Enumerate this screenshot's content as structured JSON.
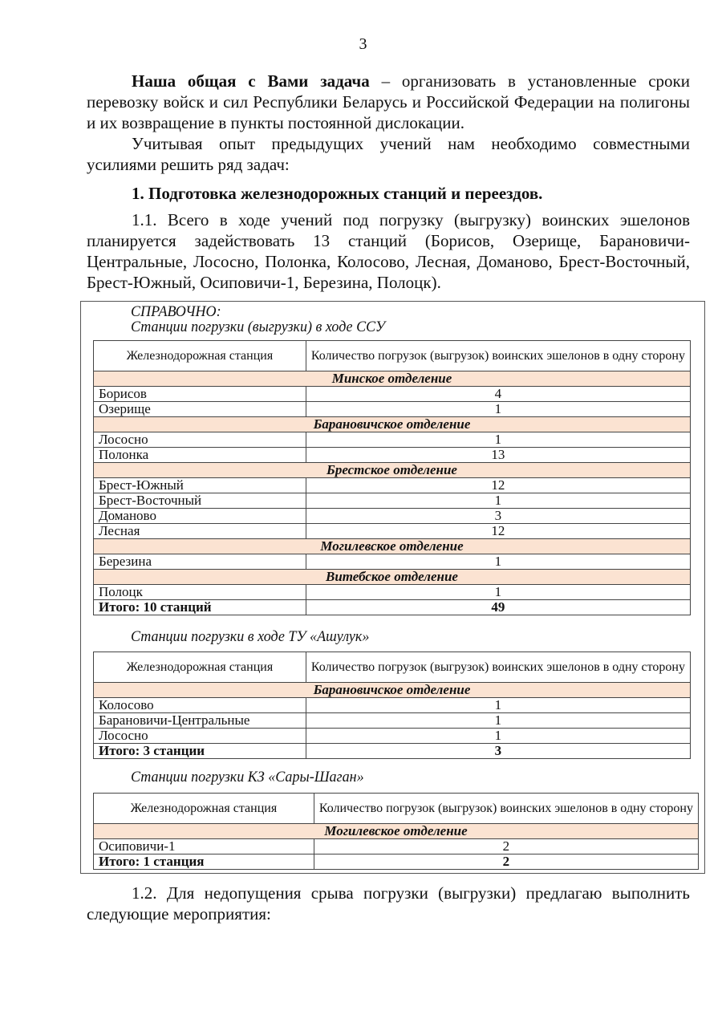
{
  "page_number": "3",
  "intro": {
    "bold_lead": "Наша общая с Вами задача",
    "rest": " – организовать в установленные сроки перевозку войск и сил Республики Беларусь и Российской Федерации на полигоны и их возвращение в пункты постоянной дислокации."
  },
  "para2": "Учитывая опыт предыдущих учений нам необходимо совместными усилиями решить ряд задач:",
  "heading1": "1. Подготовка железнодорожных станций и переездов.",
  "para_1_1": "1.1. Всего в ходе учений под погрузку (выгрузку) воинских эшелонов планируется задействовать 13 станций (Борисов, Озерище, Барановичи-Центральные, Лососно, Полонка, Колосово, Лесная, Доманово, Брест-Восточный, Брест-Южный, Осиповичи-1, Березина, Полоцк).",
  "reference": {
    "label": "СПРАВОЧНО:",
    "col1": "Железнодорожная станция",
    "col2": "Количество погрузок (выгрузок) воинских эшелонов в одну сторону",
    "section_bg": "#fbe3d2",
    "tables": [
      {
        "caption": "Станции погрузки (выгрузки) в ходе ССУ",
        "rows": [
          {
            "section": "Минское отделение"
          },
          {
            "station": "Борисов",
            "count": "4"
          },
          {
            "station": "Озерище",
            "count": "1"
          },
          {
            "section": "Барановичское отделение"
          },
          {
            "station": "Лососно",
            "count": "1"
          },
          {
            "station": "Полонка",
            "count": "13"
          },
          {
            "section": "Брестское отделение"
          },
          {
            "station": "Брест-Южный",
            "count": "12"
          },
          {
            "station": "Брест-Восточный",
            "count": "1"
          },
          {
            "station": "Доманово",
            "count": "3"
          },
          {
            "station": "Лесная",
            "count": "12"
          },
          {
            "section": "Могилевское отделение"
          },
          {
            "station": "Березина",
            "count": "1"
          },
          {
            "section": "Витебское отделение"
          },
          {
            "station": "Полоцк",
            "count": "1"
          }
        ],
        "total_label": "Итого: 10 станций",
        "total": "49"
      },
      {
        "caption": "Станции погрузки в ходе ТУ «Ашулук»",
        "rows": [
          {
            "section": "Барановичское отделение"
          },
          {
            "station": "Колосово",
            "count": "1"
          },
          {
            "station": "Барановичи-Центральные",
            "count": "1"
          },
          {
            "station": "Лососно",
            "count": "1"
          }
        ],
        "total_label": "Итого: 3 станции",
        "total": "3"
      },
      {
        "caption": "Станции погрузки КЗ «Сары-Шаган»",
        "rows": [
          {
            "section": "Могилевское отделение"
          },
          {
            "station": "Осиповичи-1",
            "count": "2"
          }
        ],
        "total_label": "Итого: 1 станция",
        "total": "2"
      }
    ]
  },
  "para_1_2": "1.2. Для недопущения срыва погрузки (выгрузки) предлагаю выполнить следующие мероприятия:"
}
